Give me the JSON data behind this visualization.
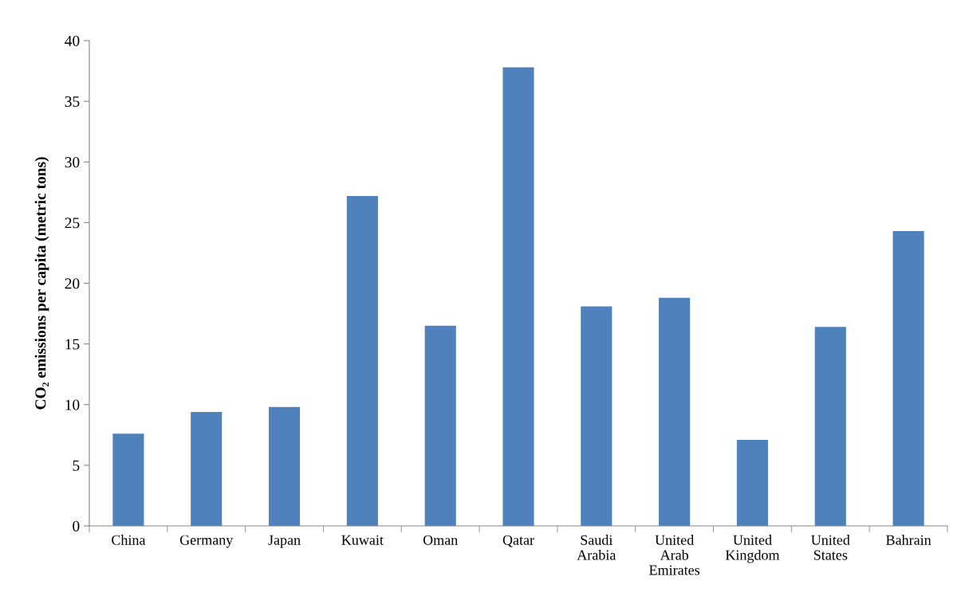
{
  "chart_data": {
    "type": "bar",
    "ylabel": "CO₂ emissions per capita (metric tons)",
    "categories": [
      "China",
      "Germany",
      "Japan",
      "Kuwait",
      "Oman",
      "Qatar",
      "Saudi\nArabia",
      "United\nArab\nEmirates",
      "United\nKingdom",
      "United\nStates",
      "Bahrain"
    ],
    "values": [
      7.6,
      9.4,
      9.8,
      27.2,
      16.5,
      37.8,
      18.1,
      18.8,
      7.1,
      16.4,
      24.3
    ],
    "color": "#4f81bd",
    "ylim": [
      0,
      40
    ],
    "yticks": [
      0,
      5,
      10,
      15,
      20,
      25,
      30,
      35,
      40
    ],
    "grid": false
  }
}
